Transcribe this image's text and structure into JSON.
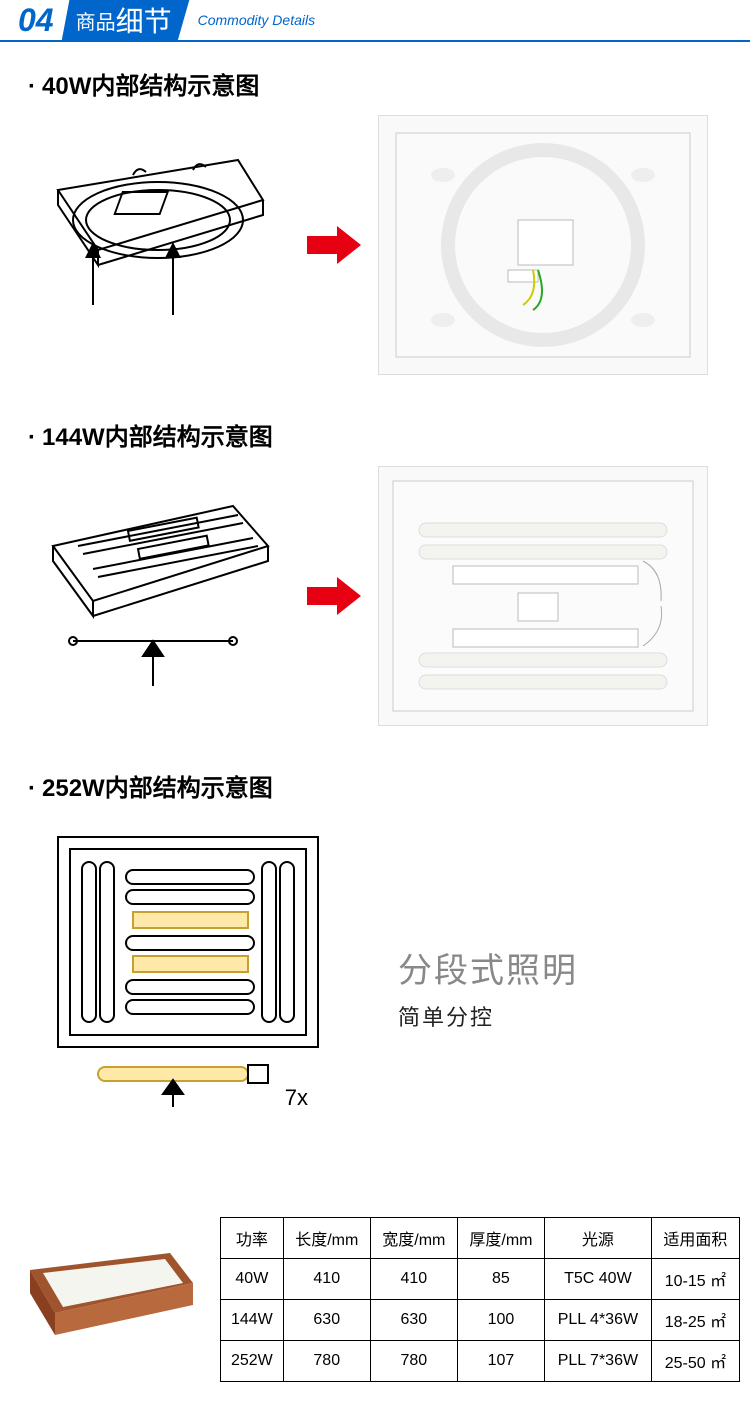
{
  "header": {
    "number": "04",
    "title_small": "商品",
    "title_big": "细节",
    "subtitle": "Commodity Details",
    "accent_color": "#0066cc"
  },
  "sections": [
    {
      "title": "40W内部结构示意图"
    },
    {
      "title": "144W内部结构示意图"
    },
    {
      "title": "252W内部结构示意图"
    }
  ],
  "arrow_color": "#e60012",
  "text_block": {
    "main": "分段式照明",
    "sub": "简单分控",
    "main_color": "#888888",
    "sub_color": "#222222"
  },
  "seven_x_label": "7x",
  "table": {
    "columns": [
      "功率",
      "长度/mm",
      "宽度/mm",
      "厚度/mm",
      "光源",
      "适用面积"
    ],
    "rows": [
      [
        "40W",
        "410",
        "410",
        "85",
        "T5C 40W",
        "10-15 ㎡"
      ],
      [
        "144W",
        "630",
        "630",
        "100",
        "PLL 4*36W",
        "18-25 ㎡"
      ],
      [
        "252W",
        "780",
        "780",
        "107",
        "PLL 7*36W",
        "25-50 ㎡"
      ]
    ]
  },
  "photo_circle_color": "#f0f0f0",
  "photo_ballast_color": "#ffffff",
  "product_frame_color": "#a0542e",
  "product_panel_color": "#f5f5f0"
}
